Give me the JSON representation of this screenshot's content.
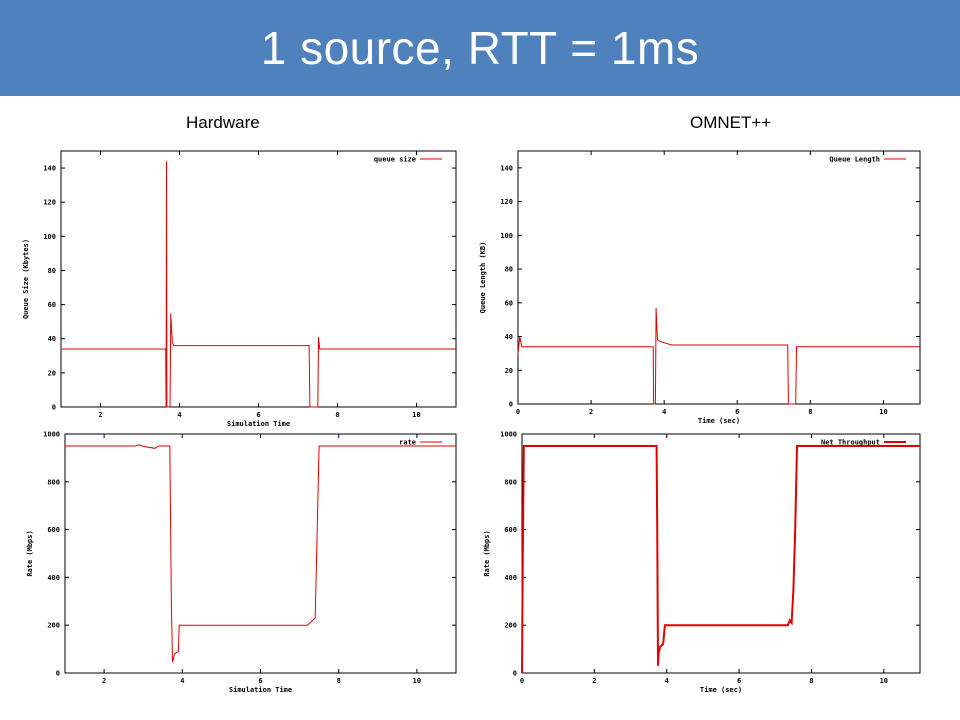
{
  "header": {
    "title": "1 source, RTT = 1ms"
  },
  "columns": {
    "left": "Hardware",
    "right": "OMNET++"
  },
  "colors": {
    "banner": "#4f81bd",
    "series": "#e00000"
  },
  "chart_data": [
    {
      "id": "hw-queue",
      "type": "line",
      "xlabel": "Simulation Time",
      "ylabel": "Queue Size (Kbytes)",
      "xlim": [
        1,
        11
      ],
      "ylim": [
        0,
        150
      ],
      "xticks": [
        2,
        4,
        6,
        8,
        10
      ],
      "yticks": [
        0,
        20,
        40,
        60,
        80,
        100,
        120,
        140
      ],
      "legend": "top-right",
      "series": [
        {
          "name": "queue size",
          "x": [
            1.0,
            3.65,
            3.66,
            3.67,
            3.68,
            3.72,
            3.76,
            3.78,
            3.8,
            3.82,
            3.85,
            3.95,
            4.0,
            7.28,
            7.3,
            7.5,
            7.52,
            7.55,
            11.0
          ],
          "y": [
            34,
            34,
            0,
            144,
            0,
            0,
            0,
            55,
            45,
            38,
            36,
            36,
            36,
            36,
            0,
            0,
            41,
            34,
            34
          ]
        }
      ]
    },
    {
      "id": "omnet-queue",
      "type": "line",
      "xlabel": "Time (sec)",
      "ylabel": "Queue Length (KB)",
      "xlim": [
        0,
        11
      ],
      "ylim": [
        0,
        150
      ],
      "xticks": [
        0,
        2,
        4,
        6,
        8,
        10
      ],
      "yticks": [
        0,
        20,
        40,
        60,
        80,
        100,
        120,
        140
      ],
      "legend": "top-right",
      "series": [
        {
          "name": "Queue Length",
          "x": [
            0.0,
            0.05,
            0.1,
            3.7,
            3.71,
            3.72,
            3.76,
            3.78,
            3.8,
            3.82,
            3.9,
            4.2,
            7.38,
            7.4,
            7.6,
            7.62,
            11.0
          ],
          "y": [
            30,
            40,
            34,
            34,
            0,
            0,
            0,
            57,
            45,
            38,
            37,
            35,
            35,
            0,
            0,
            34,
            34
          ]
        }
      ]
    },
    {
      "id": "hw-rate",
      "type": "line",
      "xlabel": "Simulation Time",
      "ylabel": "Rate (Mbps)",
      "xlim": [
        1,
        11
      ],
      "ylim": [
        0,
        1000
      ],
      "xticks": [
        2,
        4,
        6,
        8,
        10
      ],
      "yticks": [
        0,
        200,
        400,
        600,
        800,
        1000
      ],
      "legend": "top-right",
      "series": [
        {
          "name": "rate",
          "x": [
            1.0,
            2.8,
            2.9,
            3.0,
            3.3,
            3.4,
            3.68,
            3.72,
            3.75,
            3.8,
            3.9,
            3.92,
            7.2,
            7.3,
            7.4,
            7.45,
            7.5,
            11.0
          ],
          "y": [
            950,
            950,
            955,
            948,
            940,
            950,
            950,
            280,
            45,
            80,
            90,
            200,
            200,
            215,
            230,
            600,
            950,
            950
          ]
        }
      ]
    },
    {
      "id": "omnet-rate",
      "type": "line",
      "xlabel": "Time (sec)",
      "ylabel": "Rate (Mbps)",
      "xlim": [
        0,
        11
      ],
      "ylim": [
        0,
        1000
      ],
      "xticks": [
        0,
        2,
        4,
        6,
        8,
        10
      ],
      "yticks": [
        0,
        200,
        400,
        600,
        800,
        1000
      ],
      "legend": "top-right",
      "series": [
        {
          "name": "Net Throughput",
          "x": [
            0.0,
            0.02,
            0.05,
            0.08,
            3.72,
            3.74,
            3.76,
            3.78,
            3.82,
            3.9,
            3.95,
            7.35,
            7.4,
            7.45,
            7.5,
            7.55,
            7.6,
            11.0
          ],
          "y": [
            0,
            450,
            950,
            950,
            950,
            560,
            30,
            90,
            110,
            120,
            200,
            200,
            220,
            210,
            350,
            600,
            950,
            950
          ]
        }
      ]
    }
  ]
}
